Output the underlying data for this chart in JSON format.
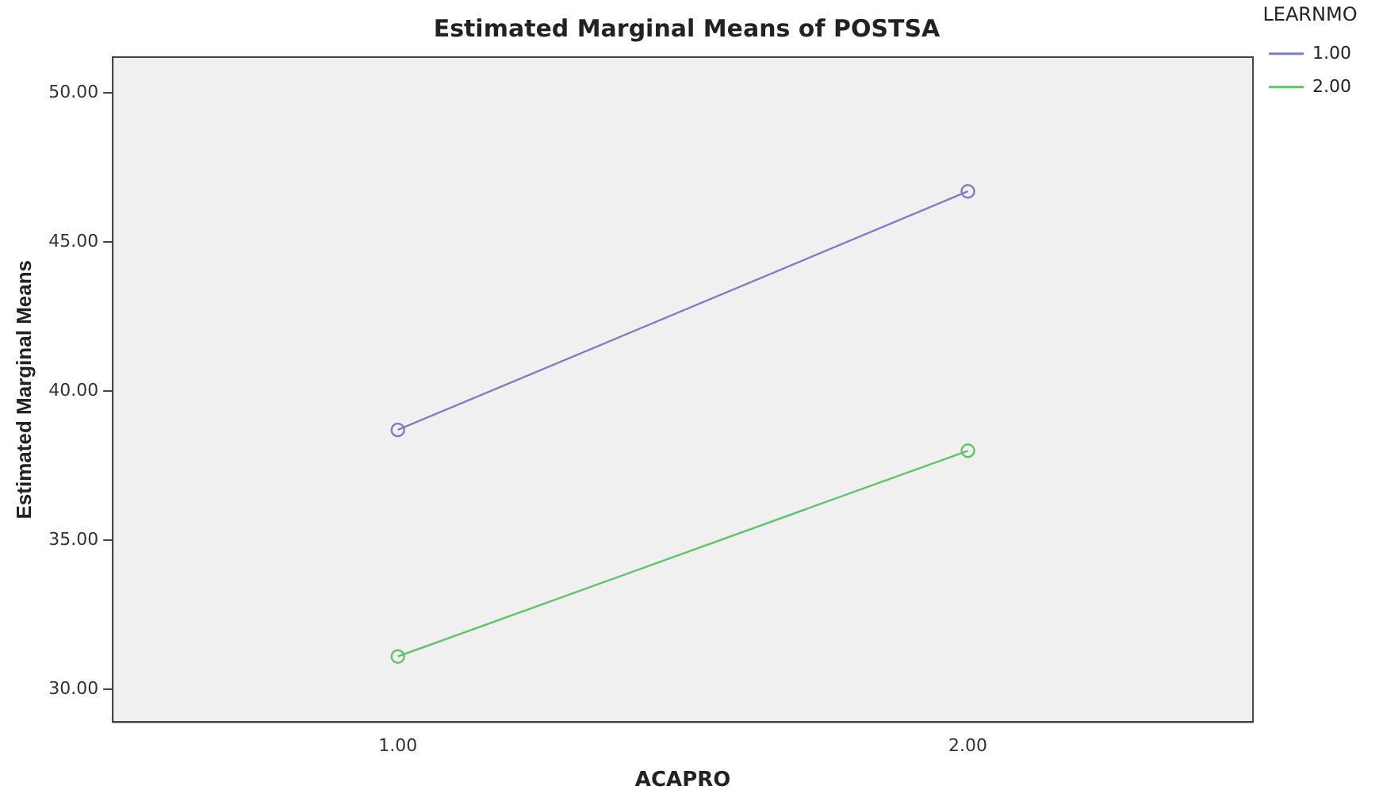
{
  "chart_data": {
    "type": "line",
    "title": "Estimated Marginal Means of POSTSA",
    "xlabel": "ACAPRO",
    "ylabel": "Estimated Marginal Means",
    "legend_title": "LEARNMO",
    "categories": [
      "1.00",
      "2.00"
    ],
    "series": [
      {
        "name": "1.00",
        "color": "#7b7fc0",
        "values": [
          38.7,
          46.7
        ]
      },
      {
        "name": "2.00",
        "color": "#5fc46a",
        "values": [
          31.1,
          38.0
        ]
      }
    ],
    "ylim": [
      28.9,
      51.2
    ],
    "yticks": [
      {
        "value": 30,
        "label": "30.00"
      },
      {
        "value": 35,
        "label": "35.00"
      },
      {
        "value": 40,
        "label": "40.00"
      },
      {
        "value": 45,
        "label": "45.00"
      },
      {
        "value": 50,
        "label": "50.00"
      }
    ],
    "grid": false,
    "legend": "top right",
    "marker": "circle",
    "line_style": "solid"
  }
}
